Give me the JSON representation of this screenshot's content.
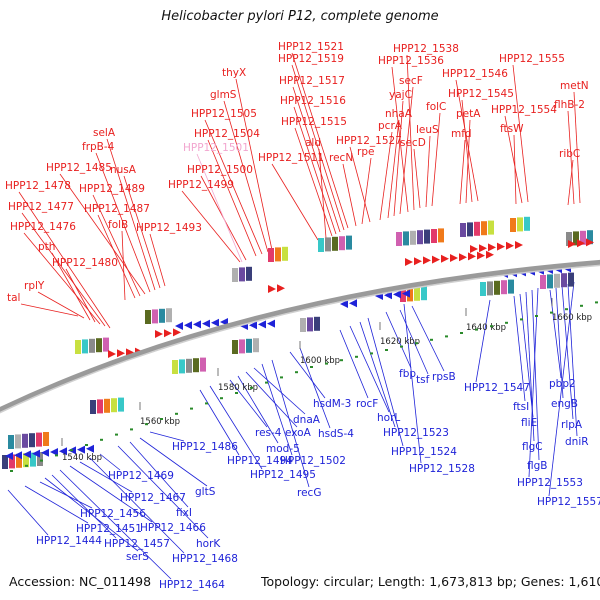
{
  "title": "Helicobacter pylori P12, complete genome",
  "footer": {
    "accession": "Accession: NC_011498",
    "summary": "Topology: circular; Length: 1,673,813 bp; Genes: 1,610"
  },
  "colors": {
    "forward_label": "#e8201f",
    "forward_label_faint": "#f2a6cf",
    "reverse_label": "#1f23d8",
    "backbone": "#9a9a9a",
    "tick": "#2a8a2a"
  },
  "kbp_ticks": [
    "1540 kbp",
    "1560 kbp",
    "1580 kbp",
    "1600 kbp",
    "1620 kbp",
    "1640 kbp",
    "1660 kbp"
  ],
  "forward_labels": [
    "tal",
    "rplY",
    "pth",
    "HPP12_1480",
    "HPP12_1476",
    "HPP12_1477",
    "HPP12_1478",
    "folB",
    "HPP12_1487",
    "HPP12_1489",
    "HPP12_1485",
    "frpB-4",
    "selA",
    "nusA",
    "HPP12_1493",
    "HPP12_1499",
    "HPP12_1500",
    "HPP12_1501",
    "HPP12_1504",
    "HPP12_1505",
    "glmS",
    "thyX",
    "HPP12_1511",
    "ald",
    "HPP12_1515",
    "HPP12_1516",
    "HPP12_1517",
    "HPP12_1519",
    "HPP12_1521",
    "recN",
    "rpe",
    "HPP12_1527",
    "pcrA",
    "nhaA",
    "yajC",
    "secF",
    "HPP12_1536",
    "HPP12_1538",
    "secD",
    "leuS",
    "folC",
    "mfd",
    "petA",
    "HPP12_1545",
    "HPP12_1546",
    "ftsW",
    "HPP12_1554",
    "HPP12_1555",
    "ribC",
    "flhB-2",
    "metN"
  ],
  "reverse_labels": [
    "HPP12_1444",
    "HPP12_1451",
    "HPP12_1456",
    "serS",
    "HPP12_1457",
    "HPP12_1464",
    "HPP12_1466",
    "HPP12_1467",
    "HPP12_1468",
    "HPP12_1469",
    "horK",
    "fixI",
    "gltS",
    "HPP12_1486",
    "HPP12_1494",
    "HPP12_1495",
    "res-4",
    "mod-5",
    "exoA",
    "dnaA",
    "HPP12_1502",
    "recG",
    "hsdM-3",
    "hsdS-4",
    "rocF",
    "horL",
    "HPP12_1523",
    "HPP12_1524",
    "fbp",
    "tsf",
    "rpsB",
    "HPP12_1528",
    "HPP12_1547",
    "ftsI",
    "fliE",
    "flgC",
    "flgB",
    "HPP12_1553",
    "pbp2",
    "engB",
    "rlpA",
    "dniR",
    "HPP12_1557"
  ]
}
